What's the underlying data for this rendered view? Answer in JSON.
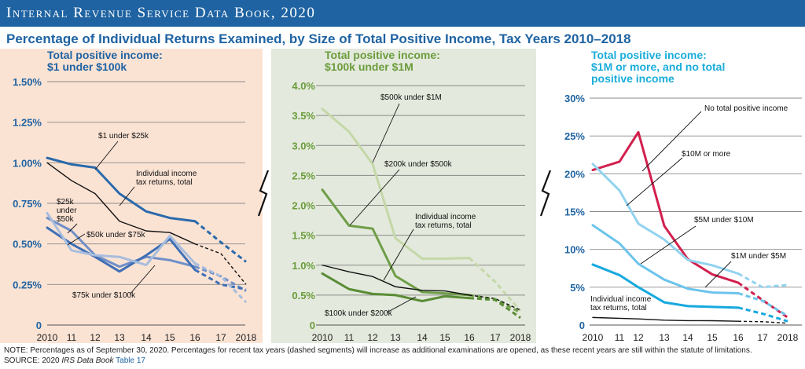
{
  "header": {
    "text": "Internal Revenue Service Data Book, 2020"
  },
  "title": "Percentage of Individual Returns Examined, by Size of Total Positive Income, Tax Years 2010–2018",
  "note": "NOTE: Percentages as of September 30, 2020. Percentages for recent tax years (dashed segments) will increase as additional examinations are opened, as these recent years are still within the statute of limitations.",
  "source": {
    "prefix": "SOURCE:  2020 ",
    "book": "IRS Data Book",
    "link": "Table 17"
  },
  "colors": {
    "header_blue": "#1f63a2",
    "panel1_bg": "#fbe3d4",
    "panel2_bg": "#e3e9dc",
    "panel3_bg": "#ffffff"
  },
  "chart_data": [
    {
      "type": "line",
      "title": "Total positive income:\n$1 under $100k",
      "title_color": "#1f63a2",
      "x": [
        2010,
        2011,
        2012,
        2013,
        2014,
        2015,
        2016,
        2017,
        2018
      ],
      "x_tick_labels": [
        "2010",
        "11",
        "12",
        "13",
        "14",
        "15",
        "16",
        "17",
        "2018"
      ],
      "ylim": [
        0,
        1.5
      ],
      "y_ticks": [
        0,
        0.25,
        0.5,
        0.75,
        1.0,
        1.25,
        1.5
      ],
      "y_tick_labels": [
        "0",
        "0.25%",
        "0.50%",
        "0.75%",
        "1.00%",
        "1.25%",
        "1.50%"
      ],
      "grid": true,
      "dashed_from": 2016,
      "series": [
        {
          "name": "$1 under $25k",
          "color": "#2b6aab",
          "width": 3,
          "values": [
            1.03,
            0.99,
            0.97,
            0.81,
            0.7,
            0.66,
            0.64,
            0.51,
            0.39
          ]
        },
        {
          "name": "Individual income tax returns, total",
          "color": "#111111",
          "width": 1.4,
          "values": [
            1.0,
            0.89,
            0.81,
            0.64,
            0.58,
            0.57,
            0.5,
            0.44,
            0.25
          ]
        },
        {
          "name": "$25k under $50k",
          "color": "#6f8fc8",
          "width": 3,
          "values": [
            0.66,
            0.58,
            0.43,
            0.36,
            0.42,
            0.4,
            0.36,
            0.3,
            0.21
          ]
        },
        {
          "name": "$50k under $75k",
          "color": "#3f6fb5",
          "width": 3,
          "values": [
            0.6,
            0.5,
            0.42,
            0.33,
            0.43,
            0.53,
            0.34,
            0.25,
            0.22
          ]
        },
        {
          "name": "$75k under $100k",
          "color": "#a7bddd",
          "width": 3,
          "values": [
            0.69,
            0.46,
            0.43,
            0.42,
            0.37,
            0.55,
            0.38,
            0.3,
            0.14
          ]
        }
      ],
      "annotations": [
        "$1 under $25k",
        "Individual income\ntax returns, total",
        "$25k\nunder\n$50k",
        "$50k under $75k",
        "$75k under $100k"
      ]
    },
    {
      "type": "line",
      "title": "Total positive income:\n$100k under $1M",
      "title_color": "#6b9c3c",
      "x": [
        2010,
        2011,
        2012,
        2013,
        2014,
        2015,
        2016,
        2017,
        2018
      ],
      "x_tick_labels": [
        "2010",
        "11",
        "12",
        "13",
        "14",
        "15",
        "16",
        "17",
        "2018"
      ],
      "ylim": [
        0,
        4.0
      ],
      "y_ticks": [
        0,
        0.5,
        1.0,
        1.5,
        2.0,
        2.5,
        3.0,
        3.5,
        4.0
      ],
      "y_tick_labels": [
        "0",
        "0.5%",
        "1.0%",
        "1.5%",
        "2.0%",
        "2.5%",
        "3.0%",
        "3.5%",
        "4.0%"
      ],
      "grid": true,
      "dashed_from": 2016,
      "series": [
        {
          "name": "$500k under $1M",
          "color": "#c4d8a8",
          "width": 3,
          "values": [
            3.61,
            3.23,
            2.69,
            1.45,
            1.11,
            1.11,
            1.12,
            0.72,
            0.24
          ]
        },
        {
          "name": "$200k under $500k",
          "color": "#6f9e48",
          "width": 3,
          "values": [
            2.26,
            1.66,
            1.61,
            0.82,
            0.55,
            0.53,
            0.5,
            0.43,
            0.21
          ]
        },
        {
          "name": "Individual income tax returns, total",
          "color": "#111111",
          "width": 1.4,
          "values": [
            1.0,
            0.89,
            0.81,
            0.64,
            0.58,
            0.57,
            0.5,
            0.44,
            0.25
          ]
        },
        {
          "name": "$100k under $200k",
          "color": "#5a8c35",
          "width": 3,
          "values": [
            0.86,
            0.6,
            0.52,
            0.5,
            0.4,
            0.48,
            0.45,
            0.42,
            0.12
          ]
        }
      ],
      "annotations": [
        "$500k under $1M",
        "$200k under $500k",
        "Individual income\ntax returns, total",
        "$100k under $200k"
      ]
    },
    {
      "type": "line",
      "title": "Total positive income:\n$1M or more, and no total\npositive income",
      "title_color": "#1aaddb",
      "x": [
        2010,
        2011,
        2012,
        2013,
        2014,
        2015,
        2016,
        2017,
        2018
      ],
      "x_tick_labels": [
        "2010",
        "11",
        "12",
        "13",
        "14",
        "15",
        "16",
        "17",
        "2018"
      ],
      "ylim": [
        0,
        30
      ],
      "y_ticks": [
        0,
        5,
        10,
        15,
        20,
        25,
        30
      ],
      "y_tick_labels": [
        "0",
        "5%",
        "10%",
        "15%",
        "20%",
        "25%",
        "30%"
      ],
      "grid": true,
      "dashed_from": 2016,
      "series": [
        {
          "name": "No total positive income",
          "color": "#d2204e",
          "width": 3,
          "values": [
            20.5,
            21.6,
            25.5,
            13.1,
            8.7,
            6.7,
            5.6,
            3.3,
            1.0
          ]
        },
        {
          "name": "$10M or more",
          "color": "#92d3f0",
          "width": 3,
          "values": [
            21.3,
            17.8,
            13.4,
            11.3,
            8.6,
            7.9,
            6.8,
            5.0,
            5.3
          ]
        },
        {
          "name": "$5M under $10M",
          "color": "#6cc4ec",
          "width": 3,
          "values": [
            13.2,
            10.8,
            8.1,
            6.0,
            4.8,
            4.3,
            4.2,
            3.2,
            1.2
          ]
        },
        {
          "name": "$1M under $5M",
          "color": "#17a9df",
          "width": 3,
          "values": [
            8.0,
            6.6,
            5.0,
            3.0,
            2.5,
            2.4,
            2.3,
            1.5,
            0.5
          ]
        },
        {
          "name": "Individual income tax returns, total",
          "color": "#111111",
          "width": 1.4,
          "values": [
            1.0,
            0.89,
            0.81,
            0.64,
            0.58,
            0.57,
            0.5,
            0.44,
            0.25
          ]
        }
      ],
      "annotations": [
        "No total positive income",
        "$10M or more",
        "$5M under $10M",
        "$1M under $5M",
        "Individual income\ntax returns, total"
      ]
    }
  ]
}
